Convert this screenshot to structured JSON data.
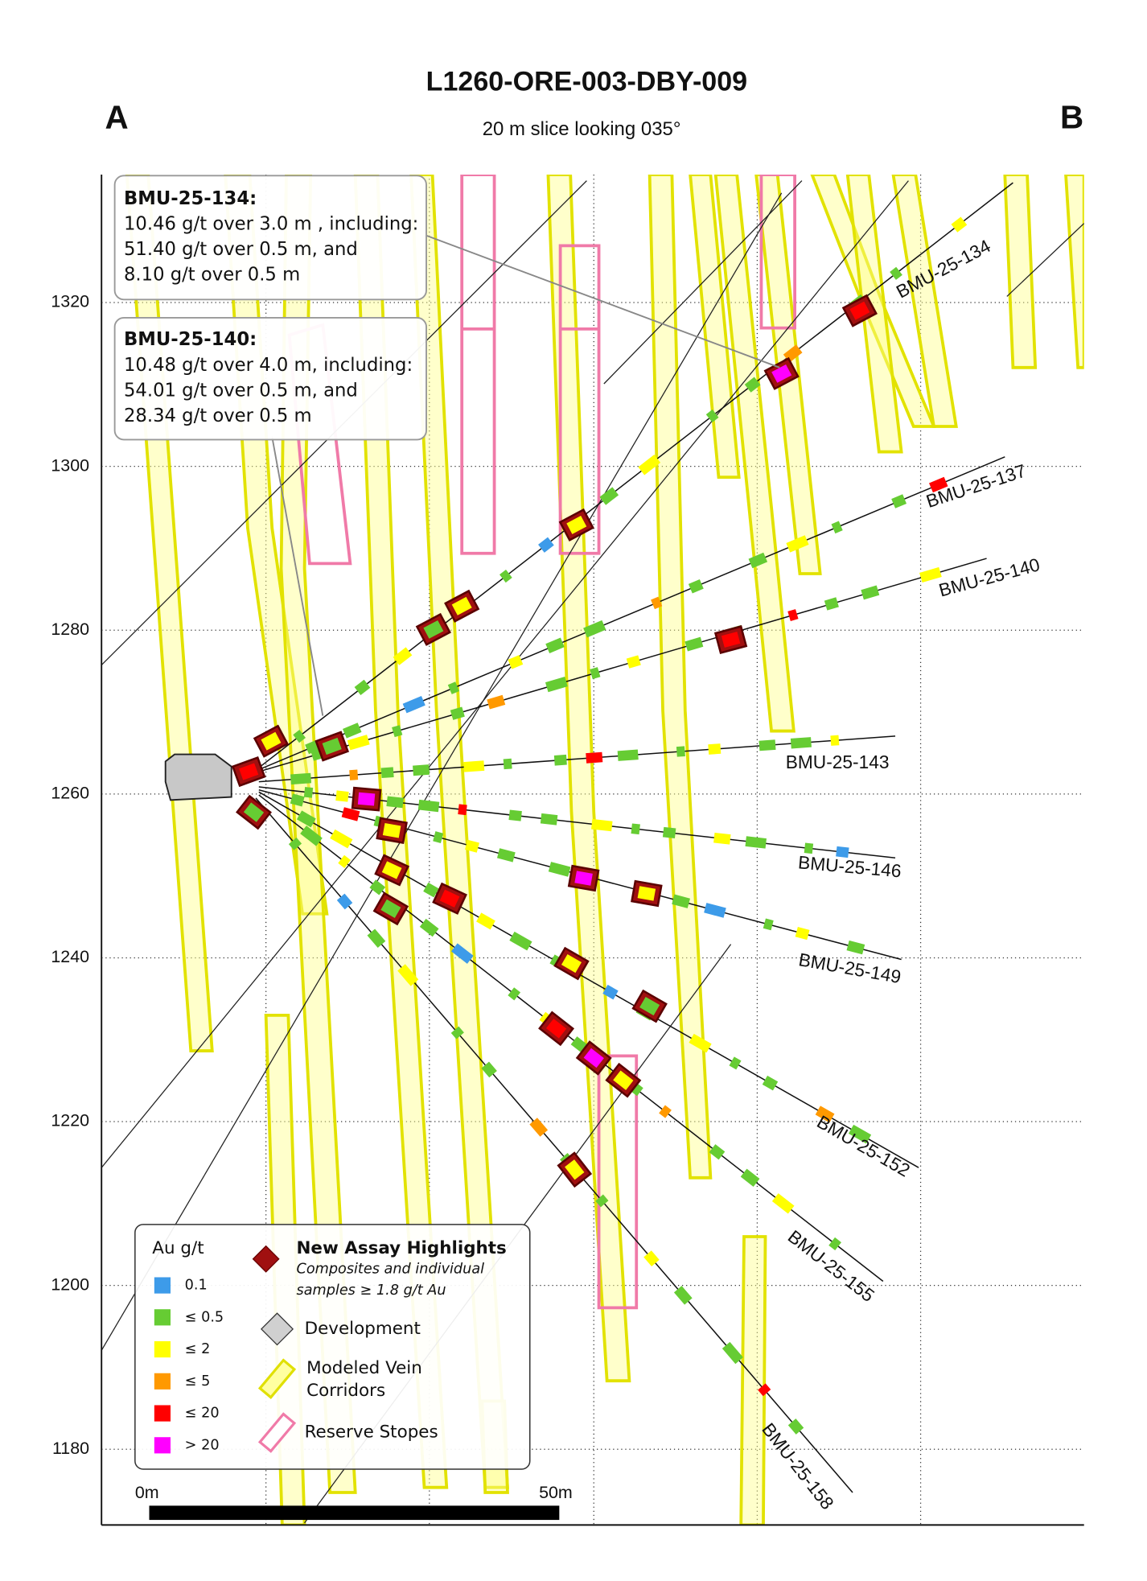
{
  "header": {
    "title": "L1260-ORE-003-DBY-009",
    "subtitle": "20 m slice looking 035°",
    "left_label": "A",
    "right_label": "B"
  },
  "axis": {
    "yticks": [
      1180,
      1200,
      1220,
      1240,
      1260,
      1280,
      1300,
      1320
    ]
  },
  "callouts": [
    {
      "hole": "BMU-25-134:",
      "lines": [
        "10.46 g/t over 3.0 m , including:",
        "51.40 g/t over 0.5 m, and",
        "8.10 g/t over 0.5 m"
      ]
    },
    {
      "hole": "BMU-25-140:",
      "lines": [
        "10.48 g/t over 4.0 m, including:",
        "54.01 g/t over 0.5 m, and",
        "28.34 g/t over 0.5 m"
      ]
    }
  ],
  "holes": [
    "BMU-25-134",
    "BMU-25-137",
    "BMU-25-140",
    "BMU-25-143",
    "BMU-25-146",
    "BMU-25-149",
    "BMU-25-152",
    "BMU-25-155",
    "BMU-25-158"
  ],
  "legend": {
    "au_title": "Au g/t",
    "grades": [
      "0.1",
      "≤ 0.5",
      "≤ 2",
      "≤ 5",
      "≤ 20",
      "> 20"
    ],
    "highlight_title": "New Assay Highlights",
    "highlight_note": [
      "Composites and individual",
      "samples ≥ 1.8 g/t Au"
    ],
    "development": "Development",
    "veins": [
      "Modeled Vein",
      "Corridors"
    ],
    "stopes": "Reserve Stopes"
  },
  "scale": {
    "start": "0m",
    "end": "50m"
  }
}
